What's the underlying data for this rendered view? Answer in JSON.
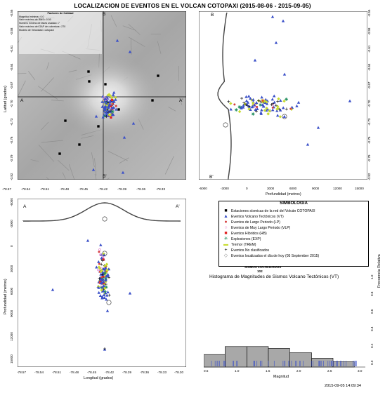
{
  "title": "LOCALIZACION DE EVENTOS EN EL VOLCAN COTOPAXI (2015-08-06 - 2015-09-05)",
  "map": {
    "quality_title": "Factores de Calidad",
    "quality_lines": [
      "Magnitud minima= 0.0",
      "Valor máximo de RMS= 0.50",
      "Número mínimo de fases usadas= 7",
      "Valor máximo del GAP de cobertura= 270",
      "Modelo de Velocidad= cotopaxi"
    ],
    "lat_label": "Latitud (grados)",
    "lat_ticks": [
      "-0.55",
      "-0.58",
      "-0.61",
      "-0.64",
      "-0.67",
      "-0.70",
      "-0.73",
      "-0.76",
      "-0.79",
      "-0.82"
    ],
    "lon_ticks": [
      "-78.57",
      "-78.54",
      "-78.51",
      "-78.48",
      "-78.45",
      "-78.42",
      "-78.39",
      "-78.36",
      "-78.33"
    ],
    "section_labels": {
      "A": "A",
      "A_prime": "A'",
      "B": "B",
      "B_prime": "B'"
    }
  },
  "ns_section": {
    "xlabel": "Profundidad (metros)",
    "x_ticks": [
      "-6000",
      "-3000",
      "0",
      "3000",
      "6000",
      "9000",
      "12000",
      "15000"
    ],
    "lat_ticks": [
      "-0.55",
      "-0.58",
      "-0.61",
      "-0.64",
      "-0.67",
      "-0.70",
      "-0.73",
      "-0.76",
      "-0.79",
      "-0.82"
    ],
    "B": "B",
    "B_prime": "B'"
  },
  "ew_section": {
    "ylabel": "Profundidad (metros)",
    "xlabel": "Longitud (grados)",
    "y_ticks": [
      "-6000",
      "-3000",
      "0",
      "3000",
      "6000",
      "9000",
      "12000",
      "15000"
    ],
    "lon_ticks": [
      "-78.57",
      "-78.54",
      "-78.51",
      "-78.48",
      "-78.45",
      "-78.42",
      "-78.39",
      "-78.36",
      "-78.33",
      "-78.30"
    ],
    "A": "A",
    "A_prime": "A'"
  },
  "legend": {
    "title": "SIMBOLOGIA",
    "items": [
      {
        "symbol": "■",
        "color": "#000000",
        "label": "Estaciones sísmicas de la red del Volcán COTOPAXI"
      },
      {
        "symbol": "▲",
        "color": "#3a4fc8",
        "label": "Eventos Volcano Tectónicos (VT)"
      },
      {
        "symbol": "●",
        "color": "#d64040",
        "label": "Eventos de Largo Periodo (LP)"
      },
      {
        "symbol": "○",
        "color": "#e070c8",
        "label": "Eventos de Muy Largo Periodo (VLP)"
      },
      {
        "symbol": "■",
        "color": "#e02020",
        "label": "Eventos Híbridos (HB)"
      },
      {
        "symbol": "✳",
        "color": "#1a8a5a",
        "label": "Explosiones (EXP)"
      },
      {
        "symbol": "▬",
        "color": "#c8dc30",
        "label": "Tremor (TREM)"
      },
      {
        "symbol": "+",
        "color": "#000000",
        "label": "Eventos No clasificados"
      },
      {
        "symbol": "◇",
        "color": "#808080",
        "label": "Eventos localizados el día de hoy (05 September 2015)"
      }
    ]
  },
  "histogram": {
    "count_label": "SISMOS LOCALIZADOS",
    "count": "102",
    "title": "Histograma de Magnitudes de Sismos Volcano Tectónicos (VT)",
    "xlabel": "Magnitud",
    "ylabel": "Frecuencia Relativa",
    "x_ticks": [
      "0.5",
      "1.0",
      "1.5",
      "2.0",
      "2.5",
      "3.0"
    ],
    "y_ticks": [
      "0.0",
      "0.2",
      "0.4",
      "0.6",
      "0.8",
      "1.0"
    ],
    "bins": [
      0.5,
      0.83,
      1.17,
      1.5,
      1.83,
      2.17,
      2.5,
      2.83
    ],
    "freq": [
      0.14,
      0.23,
      0.23,
      0.21,
      0.16,
      0.1,
      0.06
    ]
  },
  "timestamp": "2015-09-05 14:09:34",
  "colors": {
    "vt": "#3a4fc8",
    "lp": "#d64040",
    "hb": "#e02020",
    "vlp": "#e070c8",
    "exp": "#1a8a5a",
    "trem": "#c8dc30",
    "station": "#000000",
    "hist_bar": "#a8a8a8"
  }
}
